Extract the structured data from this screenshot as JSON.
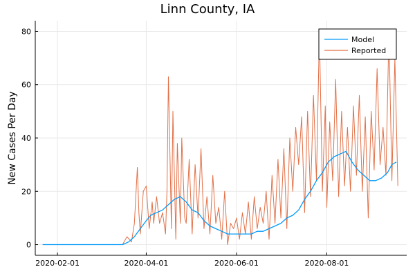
{
  "chart_data": {
    "type": "line",
    "title": "Linn County, IA",
    "xlabel": "",
    "ylabel": "New Cases Per Day",
    "x_ticks": [
      "2020-02-01",
      "2020-04-01",
      "2020-06-01",
      "2020-08-01"
    ],
    "y_ticks": [
      0,
      20,
      40,
      60,
      80
    ],
    "ylim": [
      -4,
      84
    ],
    "xlim": [
      "2020-01-17",
      "2020-09-24"
    ],
    "grid": true,
    "legend_position": "top-right",
    "series": [
      {
        "name": "Model",
        "color": "#009AFA",
        "x": [
          "2020-01-22",
          "2020-03-16",
          "2020-03-20",
          "2020-03-24",
          "2020-03-28",
          "2020-04-01",
          "2020-04-04",
          "2020-04-08",
          "2020-04-12",
          "2020-04-16",
          "2020-04-20",
          "2020-04-24",
          "2020-04-28",
          "2020-05-02",
          "2020-05-06",
          "2020-05-10",
          "2020-05-14",
          "2020-05-18",
          "2020-05-22",
          "2020-05-26",
          "2020-05-30",
          "2020-06-03",
          "2020-06-07",
          "2020-06-11",
          "2020-06-15",
          "2020-06-19",
          "2020-06-23",
          "2020-06-27",
          "2020-07-01",
          "2020-07-05",
          "2020-07-09",
          "2020-07-13",
          "2020-07-17",
          "2020-07-21",
          "2020-07-25",
          "2020-07-29",
          "2020-08-02",
          "2020-08-06",
          "2020-08-10",
          "2020-08-14",
          "2020-08-18",
          "2020-08-22",
          "2020-08-26",
          "2020-08-30",
          "2020-09-03",
          "2020-09-07",
          "2020-09-11",
          "2020-09-14",
          "2020-09-17"
        ],
        "y": [
          0,
          0,
          1,
          3,
          6,
          9,
          11,
          12,
          13,
          15,
          17,
          18,
          16,
          13,
          12,
          9,
          7,
          6,
          5,
          4,
          4,
          4,
          4,
          4,
          5,
          5,
          6,
          7,
          8,
          10,
          11,
          13,
          17,
          20,
          24,
          27,
          31,
          33,
          34,
          35,
          31,
          28,
          26,
          24,
          24,
          25,
          27,
          30,
          31
        ]
      },
      {
        "name": "Reported",
        "color": "#E26F46",
        "x": [
          "2020-01-22",
          "2020-03-16",
          "2020-03-19",
          "2020-03-22",
          "2020-03-24",
          "2020-03-26",
          "2020-03-27",
          "2020-03-28",
          "2020-03-30",
          "2020-04-01",
          "2020-04-03",
          "2020-04-05",
          "2020-04-06",
          "2020-04-08",
          "2020-04-10",
          "2020-04-12",
          "2020-04-14",
          "2020-04-15",
          "2020-04-16",
          "2020-04-18",
          "2020-04-19",
          "2020-04-21",
          "2020-04-22",
          "2020-04-24",
          "2020-04-25",
          "2020-04-27",
          "2020-04-28",
          "2020-04-30",
          "2020-05-02",
          "2020-05-04",
          "2020-05-06",
          "2020-05-08",
          "2020-05-10",
          "2020-05-12",
          "2020-05-14",
          "2020-05-16",
          "2020-05-18",
          "2020-05-20",
          "2020-05-22",
          "2020-05-24",
          "2020-05-26",
          "2020-05-28",
          "2020-05-30",
          "2020-06-01",
          "2020-06-03",
          "2020-06-05",
          "2020-06-07",
          "2020-06-09",
          "2020-06-11",
          "2020-06-13",
          "2020-06-15",
          "2020-06-17",
          "2020-06-19",
          "2020-06-21",
          "2020-06-23",
          "2020-06-25",
          "2020-06-27",
          "2020-06-29",
          "2020-07-01",
          "2020-07-03",
          "2020-07-05",
          "2020-07-07",
          "2020-07-09",
          "2020-07-11",
          "2020-07-13",
          "2020-07-15",
          "2020-07-17",
          "2020-07-19",
          "2020-07-21",
          "2020-07-23",
          "2020-07-25",
          "2020-07-27",
          "2020-07-29",
          "2020-07-31",
          "2020-08-01",
          "2020-08-03",
          "2020-08-05",
          "2020-08-07",
          "2020-08-09",
          "2020-08-11",
          "2020-08-13",
          "2020-08-15",
          "2020-08-17",
          "2020-08-19",
          "2020-08-21",
          "2020-08-23",
          "2020-08-25",
          "2020-08-27",
          "2020-08-29",
          "2020-08-31",
          "2020-09-02",
          "2020-09-04",
          "2020-09-06",
          "2020-09-08",
          "2020-09-10",
          "2020-09-12",
          "2020-09-14",
          "2020-09-16",
          "2020-09-18"
        ],
        "y": [
          0,
          0,
          3,
          1,
          8,
          29,
          12,
          4,
          20,
          22,
          6,
          16,
          8,
          18,
          8,
          12,
          4,
          20,
          63,
          6,
          50,
          2,
          38,
          8,
          40,
          10,
          8,
          32,
          4,
          30,
          10,
          36,
          6,
          18,
          4,
          26,
          8,
          14,
          2,
          20,
          0,
          8,
          6,
          10,
          2,
          12,
          4,
          16,
          2,
          18,
          6,
          14,
          8,
          20,
          2,
          26,
          8,
          32,
          10,
          36,
          6,
          40,
          20,
          44,
          30,
          48,
          12,
          50,
          18,
          56,
          24,
          80,
          20,
          52,
          14,
          46,
          24,
          62,
          18,
          50,
          22,
          44,
          20,
          52,
          26,
          56,
          20,
          48,
          10,
          50,
          28,
          66,
          30,
          44,
          26,
          80,
          24,
          70,
          22
        ]
      }
    ]
  }
}
